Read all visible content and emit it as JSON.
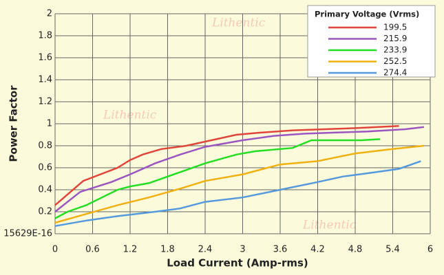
{
  "chart_data": {
    "type": "line",
    "x_label": "Load Current (Amp-rms)",
    "y_label": "Power Factor",
    "legend_title": "Primary Voltage (Vrms)",
    "legend_position": "upper right",
    "watermark": "Lithentic",
    "grid": true,
    "xlim": [
      0,
      6
    ],
    "xticks": [
      0,
      0.6,
      1.2,
      1.8,
      2.4,
      3,
      3.6,
      4.2,
      4.8,
      5.4,
      6
    ],
    "ylim": [
      0,
      2
    ],
    "yticks": [
      {
        "value": 0,
        "label": "15629E-16"
      },
      0.2,
      0.4,
      0.6,
      0.8,
      1,
      1.2,
      1.4,
      1.6,
      1.8,
      2
    ],
    "series": [
      {
        "name": "199.5",
        "color": "#e0443a",
        "x": [
          0,
          0.45,
          1.0,
          1.2,
          1.4,
          1.7,
          2.1,
          2.5,
          2.9,
          3.3,
          3.8,
          4.3,
          4.8,
          5.5
        ],
        "values": [
          0.26,
          0.48,
          0.6,
          0.67,
          0.72,
          0.77,
          0.8,
          0.85,
          0.9,
          0.92,
          0.94,
          0.95,
          0.96,
          0.98
        ]
      },
      {
        "name": "215.9",
        "color": "#9b55c0",
        "x": [
          0,
          0.4,
          0.9,
          1.2,
          1.6,
          2.0,
          2.4,
          3.0,
          3.5,
          4.0,
          4.5,
          5.0,
          5.6,
          5.9
        ],
        "values": [
          0.2,
          0.38,
          0.47,
          0.54,
          0.64,
          0.72,
          0.79,
          0.85,
          0.89,
          0.91,
          0.92,
          0.93,
          0.95,
          0.97
        ]
      },
      {
        "name": "233.9",
        "color": "#22dd22",
        "x": [
          0,
          0.2,
          0.5,
          1.0,
          1.2,
          1.5,
          2.0,
          2.4,
          2.9,
          3.2,
          3.8,
          4.1,
          4.5,
          4.9,
          5.2
        ],
        "values": [
          0.14,
          0.2,
          0.26,
          0.4,
          0.43,
          0.46,
          0.56,
          0.64,
          0.72,
          0.75,
          0.78,
          0.85,
          0.85,
          0.85,
          0.86
        ]
      },
      {
        "name": "252.5",
        "color": "#f0b010",
        "x": [
          0,
          0.5,
          1.0,
          1.5,
          2.0,
          2.4,
          3.0,
          3.6,
          4.2,
          4.8,
          5.4,
          5.9
        ],
        "values": [
          0.1,
          0.18,
          0.26,
          0.33,
          0.41,
          0.48,
          0.54,
          0.63,
          0.66,
          0.73,
          0.77,
          0.8
        ]
      },
      {
        "name": "274.4",
        "color": "#5599dd",
        "x": [
          0,
          0.5,
          1.0,
          1.6,
          2.0,
          2.4,
          3.0,
          3.6,
          4.2,
          4.6,
          5.0,
          5.5,
          5.85
        ],
        "values": [
          0.07,
          0.12,
          0.16,
          0.2,
          0.23,
          0.29,
          0.33,
          0.4,
          0.47,
          0.52,
          0.55,
          0.59,
          0.66
        ]
      }
    ]
  }
}
